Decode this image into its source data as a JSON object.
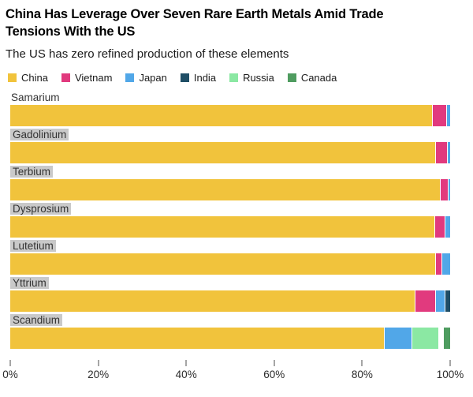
{
  "header": {
    "title": "China Has Leverage Over Seven Rare Earth Metals Amid Trade Tensions With the US",
    "subtitle": "The US has zero refined production of these elements"
  },
  "legend": [
    {
      "label": "China",
      "color": "#F1C33C"
    },
    {
      "label": "Vietnam",
      "color": "#E13A7E"
    },
    {
      "label": "Japan",
      "color": "#51A7E8"
    },
    {
      "label": "India",
      "color": "#1F4E66"
    },
    {
      "label": "Russia",
      "color": "#8BE8A3"
    },
    {
      "label": "Canada",
      "color": "#4F9C60"
    }
  ],
  "chart_data": {
    "type": "bar",
    "orientation": "horizontal",
    "stacked": true,
    "unit": "percent share of refined production",
    "categories": [
      "Samarium",
      "Gadolinium",
      "Terbium",
      "Dysprosium",
      "Lutetium",
      "Yttrium",
      "Scandium"
    ],
    "series_order": [
      "China",
      "Vietnam",
      "Japan",
      "India",
      "Russia",
      "Canada"
    ],
    "bars": [
      {
        "category": "Samarium",
        "label_highlighted": false,
        "segments": [
          {
            "country": "China",
            "value": 96.2
          },
          {
            "country": "Vietnam",
            "value": 3.1
          },
          {
            "country": "Japan",
            "value": 0.7
          }
        ]
      },
      {
        "category": "Gadolinium",
        "label_highlighted": true,
        "segments": [
          {
            "country": "China",
            "value": 97.0
          },
          {
            "country": "Vietnam",
            "value": 2.5
          },
          {
            "country": "Japan",
            "value": 0.5
          }
        ]
      },
      {
        "category": "Terbium",
        "label_highlighted": true,
        "segments": [
          {
            "country": "China",
            "value": 98.0
          },
          {
            "country": "Vietnam",
            "value": 1.6
          },
          {
            "country": "Japan",
            "value": 0.4
          }
        ]
      },
      {
        "category": "Dysprosium",
        "label_highlighted": true,
        "segments": [
          {
            "country": "China",
            "value": 96.8
          },
          {
            "country": "Vietnam",
            "value": 2.2
          },
          {
            "country": "Japan",
            "value": 1.0
          }
        ]
      },
      {
        "category": "Lutetium",
        "label_highlighted": true,
        "segments": [
          {
            "country": "China",
            "value": 97.0
          },
          {
            "country": "Vietnam",
            "value": 1.2
          },
          {
            "country": "Japan",
            "value": 1.8
          }
        ]
      },
      {
        "category": "Yttrium",
        "label_highlighted": true,
        "segments": [
          {
            "country": "China",
            "value": 92.5
          },
          {
            "country": "Vietnam",
            "value": 4.4
          },
          {
            "country": "Japan",
            "value": 2.0
          },
          {
            "country": "India",
            "value": 1.1
          }
        ]
      },
      {
        "category": "Scandium",
        "label_highlighted": true,
        "segments": [
          {
            "country": "China",
            "value": 85.0
          },
          {
            "country": "Japan",
            "value": 6.0
          },
          {
            "country": "Russia",
            "value": 6.0
          },
          {
            "country": "Canada",
            "value": 1.5
          }
        ]
      }
    ],
    "x_axis": {
      "min": 0,
      "max": 100,
      "tick_labels": [
        "0%",
        "20%",
        "40%",
        "60%",
        "80%",
        "100%"
      ]
    },
    "grid": false,
    "legend_position": "top"
  }
}
